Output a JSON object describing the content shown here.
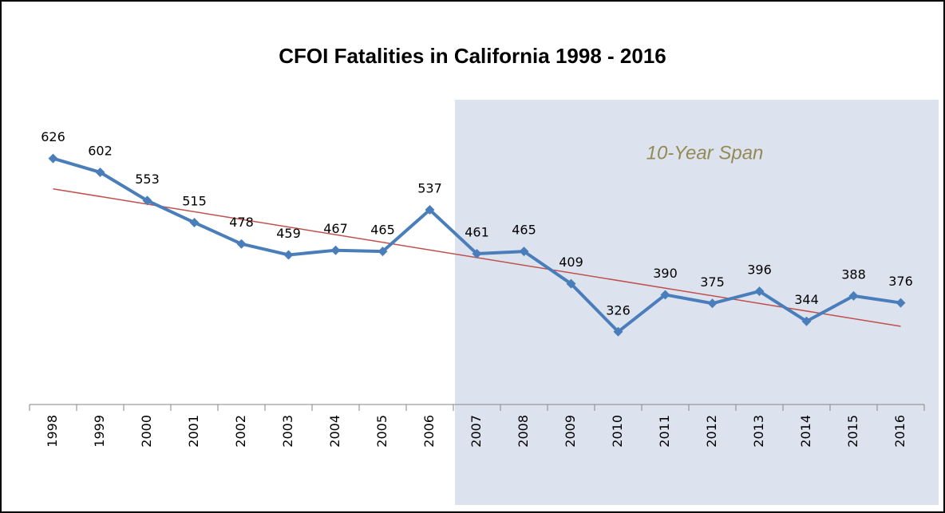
{
  "chart_data": {
    "type": "line",
    "title": "CFOI Fatalities in California 1998 - 2016",
    "categories": [
      "1998",
      "1999",
      "2000",
      "2001",
      "2002",
      "2003",
      "2004",
      "2005",
      "2006",
      "2007",
      "2008",
      "2009",
      "2010",
      "2011",
      "2012",
      "2013",
      "2014",
      "2015",
      "2016"
    ],
    "series": [
      {
        "name": "Fatalities",
        "color": "#4a7ebb",
        "values": [
          626,
          602,
          553,
          515,
          478,
          459,
          467,
          465,
          537,
          461,
          465,
          409,
          326,
          390,
          375,
          396,
          344,
          388,
          376
        ]
      }
    ],
    "ylim": [
      200,
      700
    ],
    "trendline": {
      "color": "#c0504d"
    },
    "highlight": {
      "label": "10-Year Span",
      "from": "2007",
      "to": "2016",
      "color": "#dce3ef",
      "text_color": "#948a54"
    }
  }
}
